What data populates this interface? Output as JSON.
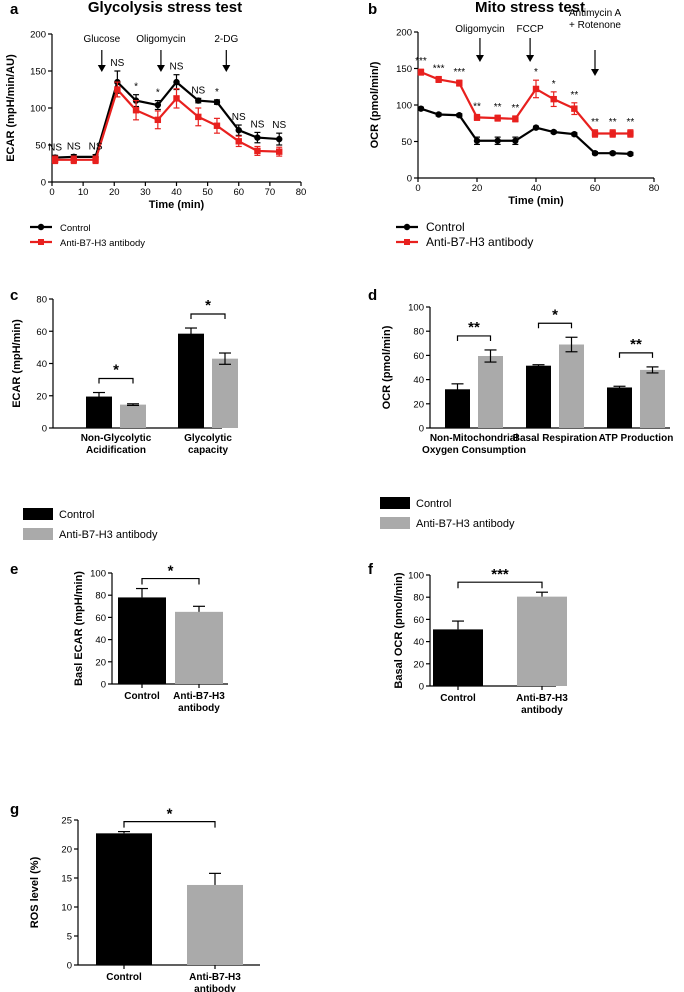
{
  "colors": {
    "control": "#000000",
    "antibody_line": "#e8201e",
    "antibody_bar": "#aaaaaa"
  },
  "chart_data": [
    {
      "id": "a",
      "panel_label": "a",
      "type": "line",
      "title": "Glycolysis stress test",
      "xlabel": "Time (min)",
      "ylabel": "ECAR (mpH/min/AU)",
      "xlim": [
        0,
        80
      ],
      "ylim": [
        0,
        200
      ],
      "xticks": [
        0,
        10,
        20,
        30,
        40,
        50,
        60,
        70,
        80
      ],
      "yticks": [
        0,
        50,
        100,
        150,
        200
      ],
      "x": [
        1,
        7,
        14,
        21,
        27,
        34,
        40,
        47,
        53,
        60,
        66,
        73
      ],
      "series": [
        {
          "name": "Control",
          "key": "control",
          "values": [
            33,
            34,
            34,
            135,
            110,
            104,
            135,
            110,
            108,
            70,
            60,
            58
          ],
          "err": [
            3,
            3,
            3,
            15,
            8,
            6,
            10,
            3,
            3,
            7,
            7,
            8
          ]
        },
        {
          "name": "Anti-B7-H3 antibody",
          "key": "antibody",
          "values": [
            30,
            30,
            30,
            125,
            97,
            84,
            113,
            88,
            76,
            55,
            42,
            41
          ],
          "err": [
            5,
            5,
            5,
            10,
            13,
            12,
            13,
            12,
            10,
            7,
            6,
            6
          ]
        }
      ],
      "significance": [
        {
          "x": 1,
          "text": "NS"
        },
        {
          "x": 7,
          "text": "NS"
        },
        {
          "x": 14,
          "text": "NS"
        },
        {
          "x": 21,
          "text": "NS"
        },
        {
          "x": 27,
          "text": "*"
        },
        {
          "x": 34,
          "text": "*"
        },
        {
          "x": 40,
          "text": "NS"
        },
        {
          "x": 47,
          "text": "NS"
        },
        {
          "x": 53,
          "text": "*"
        },
        {
          "x": 60,
          "text": "NS"
        },
        {
          "x": 66,
          "text": "NS"
        },
        {
          "x": 73,
          "text": "NS"
        }
      ],
      "injections": [
        {
          "x": 16,
          "label": "Glucose",
          "label2": ""
        },
        {
          "x": 35,
          "label": "Oligomycin",
          "label2": ""
        },
        {
          "x": 56,
          "label": "2-DG",
          "label2": ""
        }
      ],
      "legend": [
        "Control",
        "Anti-B7-H3 antibody"
      ]
    },
    {
      "id": "b",
      "panel_label": "b",
      "type": "line",
      "title": "Mito stress test",
      "xlabel": "Time (min)",
      "ylabel": "OCR (pmol/min/)",
      "xlim": [
        0,
        80
      ],
      "ylim": [
        0,
        200
      ],
      "xticks": [
        0,
        20,
        40,
        60,
        80
      ],
      "yticks": [
        0,
        50,
        100,
        150,
        200
      ],
      "x": [
        1,
        7,
        14,
        20,
        27,
        33,
        40,
        46,
        53,
        60,
        66,
        72
      ],
      "series": [
        {
          "name": "Control",
          "key": "control",
          "values": [
            95,
            87,
            86,
            51,
            51,
            51,
            69,
            63,
            60,
            34,
            34,
            33
          ],
          "err": [
            2,
            2,
            2,
            5,
            5,
            5,
            2,
            2,
            2,
            2,
            2,
            2
          ]
        },
        {
          "name": "Anti-B7-H3 antibody",
          "key": "antibody",
          "values": [
            145,
            135,
            130,
            83,
            82,
            81,
            122,
            108,
            95,
            61,
            61,
            61
          ],
          "err": [
            4,
            4,
            4,
            4,
            4,
            4,
            12,
            10,
            8,
            5,
            5,
            5
          ]
        }
      ],
      "significance": [
        {
          "x": 1,
          "text": "***"
        },
        {
          "x": 7,
          "text": "***"
        },
        {
          "x": 14,
          "text": "***"
        },
        {
          "x": 20,
          "text": "**"
        },
        {
          "x": 27,
          "text": "**"
        },
        {
          "x": 33,
          "text": "**"
        },
        {
          "x": 40,
          "text": "*"
        },
        {
          "x": 46,
          "text": "*"
        },
        {
          "x": 53,
          "text": "**"
        },
        {
          "x": 60,
          "text": "**"
        },
        {
          "x": 66,
          "text": "**"
        },
        {
          "x": 72,
          "text": "**"
        }
      ],
      "injections": [
        {
          "x": 21,
          "label": "Oligomycin",
          "label2": ""
        },
        {
          "x": 38,
          "label": "FCCP",
          "label2": ""
        },
        {
          "x": 60,
          "label": "Antimycin A",
          "label2": "+ Rotenone"
        }
      ],
      "legend": [
        "Control",
        "Anti-B7-H3 antibody"
      ]
    },
    {
      "id": "c",
      "panel_label": "c",
      "type": "bar",
      "title": "",
      "xlabel": "",
      "ylabel": "ECAR (mpH/min)",
      "ylim": [
        0,
        80
      ],
      "yticks": [
        0,
        20,
        40,
        60,
        80
      ],
      "categories": [
        [
          "Non-Glycolytic",
          "Acidification"
        ],
        [
          "Glycolytic",
          "capacity"
        ]
      ],
      "series": [
        {
          "name": "Control",
          "key": "control",
          "values": [
            19.5,
            58.5
          ],
          "err": [
            2.5,
            3.5
          ]
        },
        {
          "name": "Anti-B7-H3 antibody",
          "key": "antibody",
          "values": [
            14.5,
            43
          ],
          "err": [
            0.5,
            3.5
          ]
        }
      ],
      "significance": [
        "*",
        "*"
      ],
      "legend": [
        "Control",
        "Anti-B7-H3 antibody"
      ]
    },
    {
      "id": "d",
      "panel_label": "d",
      "type": "bar",
      "title": "",
      "xlabel": "",
      "ylabel": "OCR (pmol/min)",
      "ylim": [
        0,
        100
      ],
      "yticks": [
        0,
        20,
        40,
        60,
        80,
        100
      ],
      "categories": [
        [
          "Non-Mitochondrial",
          "Oxygen Consumption"
        ],
        [
          "Basal Respiration"
        ],
        [
          "ATP Production"
        ]
      ],
      "series": [
        {
          "name": "Control",
          "key": "control",
          "values": [
            32,
            51.5,
            33.5
          ],
          "err": [
            4.5,
            0.8,
            1
          ]
        },
        {
          "name": "Anti-B7-H3 antibody",
          "key": "antibody",
          "values": [
            59.5,
            69,
            48
          ],
          "err": [
            5,
            6,
            2.5
          ]
        }
      ],
      "significance": [
        "**",
        "*",
        "**"
      ],
      "legend": [
        "Control",
        "Anti-B7-H3 antibody"
      ]
    },
    {
      "id": "e",
      "panel_label": "e",
      "type": "bar",
      "title": "",
      "xlabel": "",
      "ylabel": "Basl ECAR (mpH/min)",
      "ylim": [
        0,
        100
      ],
      "yticks": [
        0,
        20,
        40,
        60,
        80,
        100
      ],
      "categories": [
        [
          "Control"
        ],
        [
          "Anti-B7-H3",
          "antibody"
        ]
      ],
      "values": [
        78,
        65
      ],
      "err": [
        8,
        5
      ],
      "keys": [
        "control",
        "antibody"
      ],
      "significance": "*"
    },
    {
      "id": "f",
      "panel_label": "f",
      "type": "bar",
      "title": "",
      "xlabel": "",
      "ylabel": "Basal OCR (pmol/min)",
      "ylim": [
        0,
        100
      ],
      "yticks": [
        0,
        20,
        40,
        60,
        80,
        100
      ],
      "categories": [
        [
          "Control"
        ],
        [
          "Anti-B7-H3",
          "antibody"
        ]
      ],
      "values": [
        51,
        80.5
      ],
      "err": [
        7.5,
        4
      ],
      "keys": [
        "control",
        "antibody"
      ],
      "significance": "***"
    },
    {
      "id": "g",
      "panel_label": "g",
      "type": "bar",
      "title": "",
      "xlabel": "",
      "ylabel": "ROS level (%)",
      "ylim": [
        0,
        25
      ],
      "yticks": [
        0,
        5,
        10,
        15,
        20,
        25
      ],
      "categories": [
        [
          "Control"
        ],
        [
          "Anti-B7-H3",
          "antibody"
        ]
      ],
      "values": [
        22.7,
        13.8
      ],
      "err": [
        0.3,
        2
      ],
      "keys": [
        "control",
        "antibody"
      ],
      "significance": "*"
    }
  ]
}
